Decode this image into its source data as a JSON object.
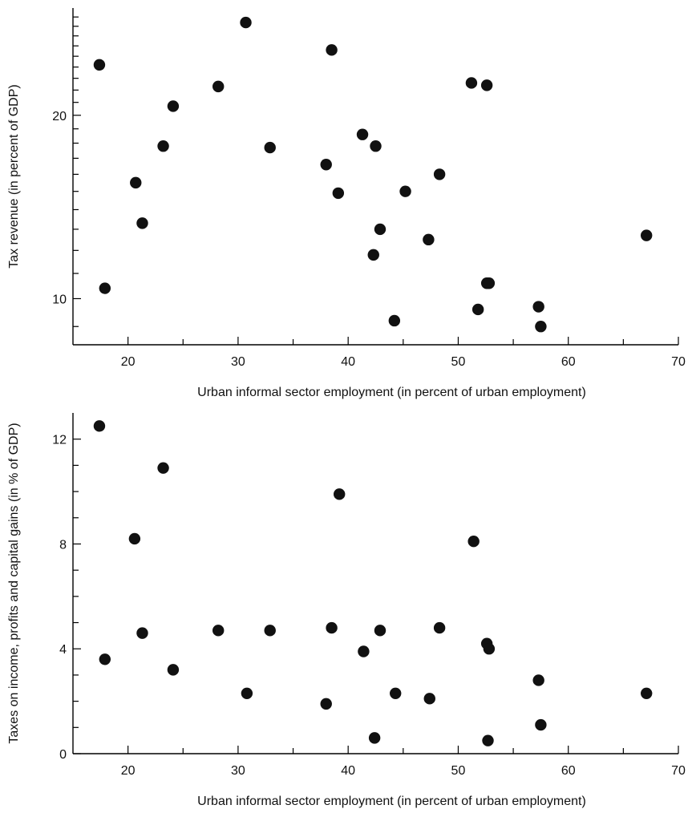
{
  "chart_data": [
    {
      "type": "scatter",
      "xlabel": "Urban informal sector employment (in percent of urban employment)",
      "ylabel": "Tax revenue (in percent of GDP)",
      "xlim": [
        15,
        70
      ],
      "ylim": [
        8.4,
        30
      ],
      "y_scale": "log",
      "x_ticks": [
        20,
        30,
        40,
        50,
        60,
        70
      ],
      "x_minor_ticks": [
        25,
        35,
        45,
        55,
        65
      ],
      "y_ticks": [
        10,
        20
      ],
      "y_minor_ticks": [
        9,
        11,
        12,
        13,
        14,
        15,
        16,
        17,
        18,
        19,
        21,
        22,
        23,
        24,
        25,
        26,
        27,
        28,
        29
      ],
      "grid": false,
      "points": [
        {
          "x": 17.4,
          "y": 24.2
        },
        {
          "x": 17.9,
          "y": 10.4
        },
        {
          "x": 20.7,
          "y": 15.5
        },
        {
          "x": 21.3,
          "y": 13.3
        },
        {
          "x": 23.2,
          "y": 17.8
        },
        {
          "x": 24.1,
          "y": 20.7
        },
        {
          "x": 28.2,
          "y": 22.3
        },
        {
          "x": 30.7,
          "y": 28.4
        },
        {
          "x": 32.9,
          "y": 17.7
        },
        {
          "x": 38.0,
          "y": 16.6
        },
        {
          "x": 38.5,
          "y": 25.6
        },
        {
          "x": 39.1,
          "y": 14.9
        },
        {
          "x": 41.3,
          "y": 18.6
        },
        {
          "x": 42.3,
          "y": 11.8
        },
        {
          "x": 42.5,
          "y": 17.8
        },
        {
          "x": 42.9,
          "y": 13.0
        },
        {
          "x": 44.2,
          "y": 9.2
        },
        {
          "x": 45.2,
          "y": 15.0
        },
        {
          "x": 47.3,
          "y": 12.5
        },
        {
          "x": 48.3,
          "y": 16.0
        },
        {
          "x": 51.2,
          "y": 22.6
        },
        {
          "x": 51.8,
          "y": 9.6
        },
        {
          "x": 52.6,
          "y": 22.4
        },
        {
          "x": 52.6,
          "y": 10.6
        },
        {
          "x": 52.8,
          "y": 10.6
        },
        {
          "x": 57.3,
          "y": 9.7
        },
        {
          "x": 57.5,
          "y": 9.0
        },
        {
          "x": 67.1,
          "y": 12.7
        }
      ]
    },
    {
      "type": "scatter",
      "xlabel": "Urban informal sector employment (in percent of urban employment)",
      "ylabel": "Taxes on income, profits and capital gains (in % of GDP)",
      "xlim": [
        15,
        70
      ],
      "ylim": [
        0,
        13
      ],
      "x_ticks": [
        20,
        30,
        40,
        50,
        60,
        70
      ],
      "x_minor_ticks": [
        25,
        35,
        45,
        55,
        65
      ],
      "y_ticks": [
        0,
        4,
        8,
        12
      ],
      "y_minor_ticks": [
        1,
        2,
        3,
        5,
        6,
        7,
        9,
        10,
        11
      ],
      "grid": false,
      "points": [
        {
          "x": 17.4,
          "y": 12.5
        },
        {
          "x": 17.9,
          "y": 3.6
        },
        {
          "x": 20.6,
          "y": 8.2
        },
        {
          "x": 21.3,
          "y": 4.6
        },
        {
          "x": 23.2,
          "y": 10.9
        },
        {
          "x": 24.1,
          "y": 3.2
        },
        {
          "x": 28.2,
          "y": 4.7
        },
        {
          "x": 30.8,
          "y": 2.3
        },
        {
          "x": 32.9,
          "y": 4.7
        },
        {
          "x": 38.0,
          "y": 1.9
        },
        {
          "x": 38.5,
          "y": 4.8
        },
        {
          "x": 39.2,
          "y": 9.9
        },
        {
          "x": 41.4,
          "y": 3.9
        },
        {
          "x": 42.4,
          "y": 0.6
        },
        {
          "x": 42.9,
          "y": 4.7
        },
        {
          "x": 44.3,
          "y": 2.3
        },
        {
          "x": 47.4,
          "y": 2.1
        },
        {
          "x": 48.3,
          "y": 4.8
        },
        {
          "x": 51.4,
          "y": 8.1
        },
        {
          "x": 52.6,
          "y": 4.2
        },
        {
          "x": 52.7,
          "y": 0.5
        },
        {
          "x": 52.8,
          "y": 4.0
        },
        {
          "x": 57.3,
          "y": 2.8
        },
        {
          "x": 57.5,
          "y": 1.1
        },
        {
          "x": 67.1,
          "y": 2.3
        }
      ]
    }
  ]
}
